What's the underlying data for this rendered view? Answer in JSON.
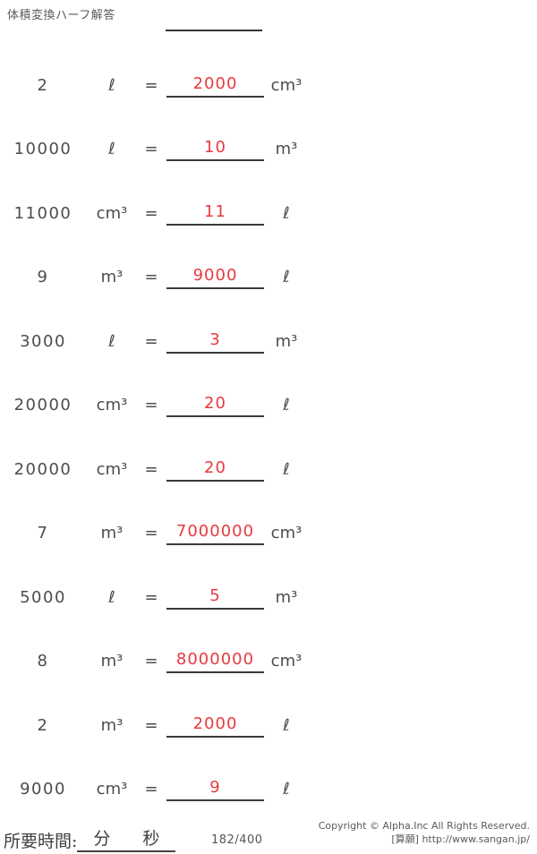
{
  "title": "体積変換ハーフ解答",
  "colors": {
    "answer_red": "#e8393f",
    "text_gray": "#4c4c4c",
    "line_dark": "#333333"
  },
  "symbols": {
    "equals": "="
  },
  "rows": [
    {
      "value": "2",
      "unit_from": "ℓ",
      "answer": "2000",
      "unit_to": "cm³"
    },
    {
      "value": "10000",
      "unit_from": "ℓ",
      "answer": "10",
      "unit_to": "m³"
    },
    {
      "value": "11000",
      "unit_from": "cm³",
      "answer": "11",
      "unit_to": "ℓ"
    },
    {
      "value": "9",
      "unit_from": "m³",
      "answer": "9000",
      "unit_to": "ℓ"
    },
    {
      "value": "3000",
      "unit_from": "ℓ",
      "answer": "3",
      "unit_to": "m³"
    },
    {
      "value": "20000",
      "unit_from": "cm³",
      "answer": "20",
      "unit_to": "ℓ"
    },
    {
      "value": "20000",
      "unit_from": "cm³",
      "answer": "20",
      "unit_to": "ℓ"
    },
    {
      "value": "7",
      "unit_from": "m³",
      "answer": "7000000",
      "unit_to": "cm³"
    },
    {
      "value": "5000",
      "unit_from": "ℓ",
      "answer": "5",
      "unit_to": "m³"
    },
    {
      "value": "8",
      "unit_from": "m³",
      "answer": "8000000",
      "unit_to": "cm³"
    },
    {
      "value": "2",
      "unit_from": "m³",
      "answer": "2000",
      "unit_to": "ℓ"
    },
    {
      "value": "9000",
      "unit_from": "cm³",
      "answer": "9",
      "unit_to": "ℓ"
    }
  ],
  "footer": {
    "time_label": "所要時間:",
    "minutes_label": "分",
    "seconds_label": "秒",
    "progress": "182/400",
    "copyright_line1": "Copyright © Alpha.Inc All Rights Reserved.",
    "copyright_line2": "[算願] http://www.sangan.jp/"
  }
}
